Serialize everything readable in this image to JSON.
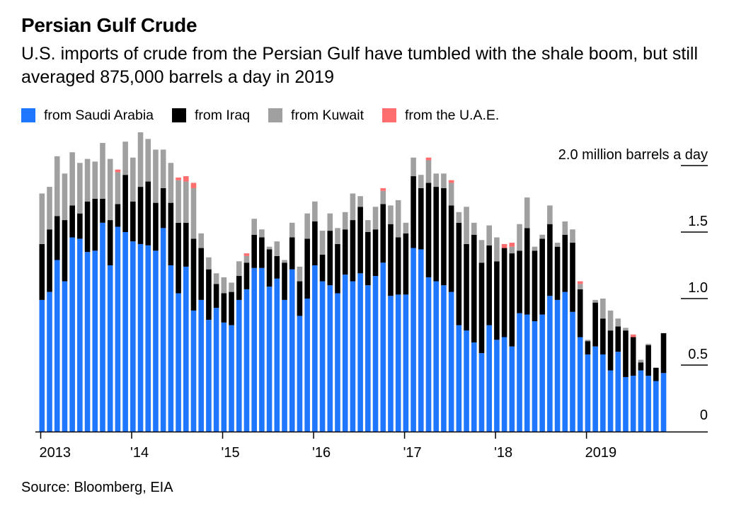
{
  "title": "Persian Gulf Crude",
  "subtitle": "U.S. imports of crude from the Persian Gulf have tumbled with the shale boom, but still averaged 875,000 barrels a day in 2019",
  "source": "Source: Bloomberg, EIA",
  "chart_data": {
    "type": "bar",
    "stacked": true,
    "unit_label": "2.0 million barrels a day",
    "ylim": [
      0,
      2.0
    ],
    "y_ticks": [
      {
        "value": 0,
        "label": "0"
      },
      {
        "value": 0.5,
        "label": "0.5"
      },
      {
        "value": 1.0,
        "label": "1.0"
      },
      {
        "value": 1.5,
        "label": "1.5"
      },
      {
        "value": 2.0,
        "label": "2.0 million barrels a day"
      }
    ],
    "x_ticks": [
      {
        "index": 0,
        "label": "2013"
      },
      {
        "index": 12,
        "label": "'14"
      },
      {
        "index": 24,
        "label": "'15"
      },
      {
        "index": 36,
        "label": "'16"
      },
      {
        "index": 48,
        "label": "'17"
      },
      {
        "index": 60,
        "label": "'18"
      },
      {
        "index": 72,
        "label": "2019"
      }
    ],
    "x_range": [
      "2013-01",
      "2019-12"
    ],
    "grid": false,
    "legend_position": "top-left",
    "series": [
      {
        "name": "from Saudi Arabia",
        "color": "#1f77ff",
        "values": [
          0.99,
          1.05,
          1.29,
          1.13,
          1.46,
          1.45,
          1.35,
          1.36,
          1.57,
          1.25,
          1.54,
          1.5,
          1.43,
          1.41,
          1.4,
          1.36,
          1.53,
          1.25,
          1.04,
          1.24,
          0.91,
          0.99,
          0.84,
          0.93,
          0.82,
          0.8,
          0.99,
          1.07,
          1.23,
          1.23,
          1.09,
          1.15,
          0.99,
          1.22,
          0.87,
          1.0,
          1.25,
          1.13,
          1.1,
          1.04,
          1.18,
          1.13,
          1.19,
          1.1,
          1.17,
          1.27,
          1.02,
          1.03,
          1.03,
          1.38,
          1.37,
          1.16,
          1.13,
          1.1,
          1.05,
          0.8,
          0.76,
          0.67,
          0.59,
          0.8,
          0.69,
          0.71,
          0.64,
          0.89,
          0.88,
          0.83,
          0.88,
          1.02,
          0.99,
          1.05,
          0.9,
          0.71,
          0.58,
          0.64,
          0.58,
          0.46,
          0.6,
          0.41,
          0.42,
          0.46,
          0.42,
          0.38,
          0.44
        ]
      },
      {
        "name": "from Iraq",
        "color": "#000000",
        "values": [
          0.42,
          0.47,
          0.33,
          0.46,
          0.24,
          0.19,
          0.38,
          0.39,
          0.18,
          0.34,
          0.17,
          0.43,
          0.3,
          0.43,
          0.48,
          0.36,
          0.3,
          0.47,
          0.53,
          0.33,
          0.54,
          0.39,
          0.38,
          0.18,
          0.22,
          0.25,
          0.18,
          0.2,
          0.25,
          0.23,
          0.28,
          0.17,
          0.28,
          0.24,
          0.26,
          0.45,
          0.33,
          0.2,
          0.41,
          0.37,
          0.34,
          0.46,
          0.5,
          0.4,
          0.35,
          0.44,
          0.54,
          0.43,
          0.46,
          0.54,
          0.46,
          0.71,
          0.71,
          0.73,
          0.65,
          0.77,
          0.65,
          0.81,
          0.68,
          0.6,
          0.59,
          0.67,
          0.7,
          0.47,
          0.65,
          0.53,
          0.57,
          0.54,
          0.4,
          0.43,
          0.52,
          0.36,
          0.1,
          0.33,
          0.27,
          0.3,
          0.19,
          0.35,
          0.29,
          0.06,
          0.23,
          0.1,
          0.3
        ]
      },
      {
        "name": "from Kuwait",
        "color": "#a0a0a0",
        "values": [
          0.38,
          0.32,
          0.45,
          0.35,
          0.4,
          0.38,
          0.32,
          0.28,
          0.42,
          0.46,
          0.24,
          0.25,
          0.33,
          0.41,
          0.32,
          0.4,
          0.29,
          0.3,
          0.32,
          0.31,
          0.38,
          0.11,
          0.09,
          0.08,
          0.12,
          0.07,
          0.11,
          0.05,
          0.12,
          0.06,
          0.02,
          0.11,
          0.02,
          0.11,
          0.11,
          0.19,
          0.15,
          0.18,
          0.13,
          0.12,
          0.13,
          0.2,
          0.08,
          0.09,
          0.17,
          0.1,
          0.14,
          0.28,
          0.08,
          0.14,
          0.1,
          0.17,
          0.1,
          0.11,
          0.17,
          0.08,
          0.28,
          0.09,
          0.17,
          0.15,
          0.18,
          0.0,
          0.05,
          0.2,
          0.23,
          0.03,
          0.03,
          0.14,
          0.03,
          0.1,
          0.1,
          0.04,
          0.01,
          0.02,
          0.15,
          0.15,
          0.06,
          0.02,
          0.0,
          0.02,
          0.01,
          0.0,
          0.0
        ]
      },
      {
        "name": "from the U.A.E.",
        "color": "#ff6e6e",
        "values": [
          0.0,
          0.0,
          0.0,
          0.0,
          0.0,
          0.0,
          0.0,
          0.0,
          0.0,
          0.0,
          0.02,
          0.0,
          0.0,
          0.0,
          0.0,
          0.0,
          0.0,
          0.0,
          0.02,
          0.04,
          0.04,
          0.0,
          0.0,
          0.0,
          0.0,
          0.0,
          0.0,
          0.02,
          0.0,
          0.0,
          0.0,
          0.0,
          0.0,
          0.0,
          0.0,
          0.0,
          0.0,
          0.0,
          0.0,
          0.0,
          0.0,
          0.0,
          0.0,
          0.0,
          0.0,
          0.02,
          0.0,
          0.0,
          0.0,
          0.0,
          0.0,
          0.02,
          0.0,
          0.0,
          0.02,
          0.0,
          0.0,
          0.0,
          0.0,
          0.0,
          0.0,
          0.03,
          0.03,
          0.0,
          0.0,
          0.0,
          0.0,
          0.0,
          0.0,
          0.0,
          0.0,
          0.02,
          0.0,
          0.0,
          0.0,
          0.0,
          0.0,
          0.0,
          0.02,
          0.0,
          0.0,
          0.0,
          0.0
        ]
      }
    ]
  }
}
